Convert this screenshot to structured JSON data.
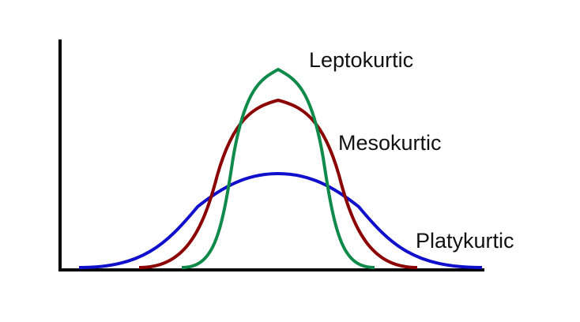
{
  "labels": {
    "leptokurtic": "Leptokurtic",
    "mesokurtic": "Mesokurtic",
    "platykurtic": "Platykurtic"
  }
}
